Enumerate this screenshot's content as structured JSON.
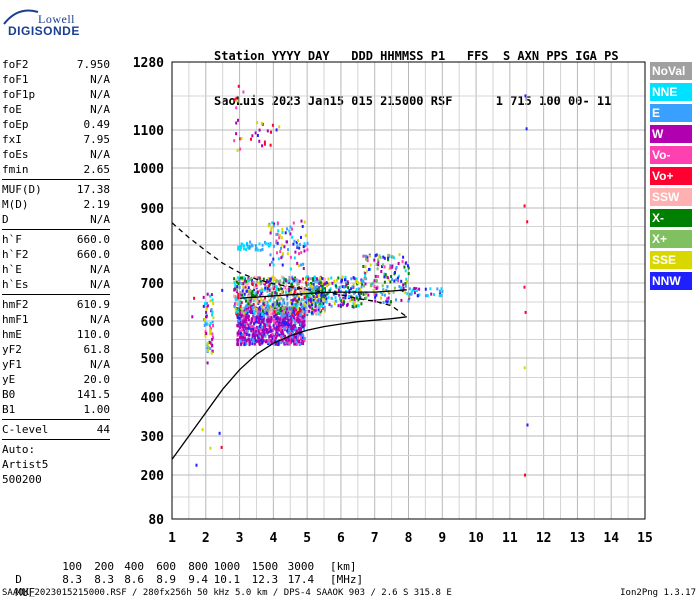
{
  "logo": {
    "top": "Lowell",
    "bottom": "DIGISONDE"
  },
  "header": {
    "line1": "Station YYYY DAY   DDD HHMMSS P1   FFS  S AXN PPS IGA PS",
    "line2": "SaoLuis 2023 Jan15 015 215000 RSF      1 715 100 00- 11"
  },
  "params": {
    "group1": [
      {
        "label": "foF2",
        "value": "7.950"
      },
      {
        "label": "foF1",
        "value": "N/A"
      },
      {
        "label": "foF1p",
        "value": "N/A"
      },
      {
        "label": "foE",
        "value": "N/A"
      },
      {
        "label": "foEp",
        "value": "0.49"
      },
      {
        "label": "fxI",
        "value": "7.95"
      },
      {
        "label": "foEs",
        "value": "N/A"
      },
      {
        "label": "fmin",
        "value": "2.65"
      }
    ],
    "group2": [
      {
        "label": "MUF(D)",
        "value": "17.38"
      },
      {
        "label": "M(D)",
        "value": "2.19"
      },
      {
        "label": "D",
        "value": "N/A"
      }
    ],
    "group3": [
      {
        "label": "h`F",
        "value": "660.0"
      },
      {
        "label": "h`F2",
        "value": "660.0"
      },
      {
        "label": "h`E",
        "value": "N/A"
      },
      {
        "label": "h`Es",
        "value": "N/A"
      }
    ],
    "group4": [
      {
        "label": "hmF2",
        "value": "610.9"
      },
      {
        "label": "hmF1",
        "value": "N/A"
      },
      {
        "label": "hmE",
        "value": "110.0"
      },
      {
        "label": "yF2",
        "value": "61.8"
      },
      {
        "label": "yF1",
        "value": "N/A"
      },
      {
        "label": "yE",
        "value": "20.0"
      },
      {
        "label": "B0",
        "value": "141.5"
      },
      {
        "label": "B1",
        "value": "1.00"
      }
    ],
    "group5": [
      {
        "label": "C-level",
        "value": "44"
      }
    ],
    "auto": [
      "Auto:",
      "Artist5",
      "500200"
    ]
  },
  "legend": [
    {
      "label": "NoVal",
      "color": "#a0a0a0"
    },
    {
      "label": "NNE",
      "color": "#00e0ff"
    },
    {
      "label": "E",
      "color": "#3aa0ff"
    },
    {
      "label": "W",
      "color": "#b000b0"
    },
    {
      "label": "Vo-",
      "color": "#ff40b0"
    },
    {
      "label": "Vo+",
      "color": "#ff0030"
    },
    {
      "label": "SSW",
      "color": "#ffb0b0"
    },
    {
      "label": "X-",
      "color": "#008000"
    },
    {
      "label": "X+",
      "color": "#80c060"
    },
    {
      "label": "SSE",
      "color": "#d8d800"
    },
    {
      "label": "NNW",
      "color": "#2020ff"
    }
  ],
  "muf_table": {
    "d_label": "D",
    "d_values": [
      "100",
      "200",
      "400",
      "600",
      "800",
      "1000",
      "1500",
      "3000"
    ],
    "d_unit": "[km]",
    "muf_label": "MUF",
    "muf_values": [
      "8.3",
      "8.3",
      "8.6",
      "8.9",
      "9.4",
      "10.1",
      "12.3",
      "17.4"
    ],
    "muf_unit": "[MHz]"
  },
  "footer": {
    "left": "SAAOK_2023015215000.RSF / 280fx256h 50 kHz 5.0 km / DPS-4 SAAOK 903 / 2.6 S 315.8 E",
    "right": "Ion2Png 1.3.17"
  },
  "chart_data": {
    "type": "scatter",
    "xlim": [
      1,
      15
    ],
    "ylim": [
      80,
      1280
    ],
    "y_scale": "ionogram (nonlinear)",
    "x_ticks": [
      1,
      2,
      3,
      4,
      5,
      6,
      7,
      8,
      9,
      10,
      11,
      12,
      13,
      14,
      15
    ],
    "y_ticks": [
      80,
      200,
      300,
      400,
      500,
      600,
      700,
      800,
      900,
      1000,
      1100,
      1280
    ],
    "grid": true,
    "series": [
      {
        "name": "",
        "style": "solid",
        "points": [
          [
            1.0,
            240
          ],
          [
            1.5,
            300
          ],
          [
            2.0,
            360
          ],
          [
            2.5,
            420
          ],
          [
            3.0,
            470
          ],
          [
            3.5,
            510
          ],
          [
            4.0,
            540
          ],
          [
            4.5,
            560
          ],
          [
            5.0,
            575
          ],
          [
            5.5,
            585
          ],
          [
            6.0,
            592
          ],
          [
            6.5,
            598
          ],
          [
            7.0,
            602
          ],
          [
            7.5,
            606
          ],
          [
            7.95,
            611
          ]
        ]
      },
      {
        "name": "",
        "style": "solid",
        "points": [
          [
            3.0,
            660
          ],
          [
            3.5,
            663
          ],
          [
            4.0,
            666
          ],
          [
            4.5,
            669
          ],
          [
            5.0,
            672
          ],
          [
            5.5,
            675
          ],
          [
            6.0,
            676
          ],
          [
            6.5,
            676
          ],
          [
            7.0,
            676
          ],
          [
            7.5,
            679
          ],
          [
            7.95,
            682
          ]
        ]
      },
      {
        "name": "",
        "style": "dashed",
        "points": [
          [
            1.0,
            860
          ],
          [
            1.5,
            820
          ],
          [
            2.0,
            785
          ],
          [
            2.5,
            752
          ],
          [
            3.0,
            727
          ],
          [
            3.5,
            710
          ],
          [
            4.0,
            698
          ],
          [
            4.5,
            690
          ],
          [
            5.0,
            683
          ],
          [
            5.5,
            676
          ],
          [
            6.0,
            669
          ],
          [
            6.5,
            659
          ],
          [
            7.0,
            652
          ],
          [
            7.5,
            640
          ],
          [
            7.95,
            611
          ]
        ]
      }
    ]
  }
}
